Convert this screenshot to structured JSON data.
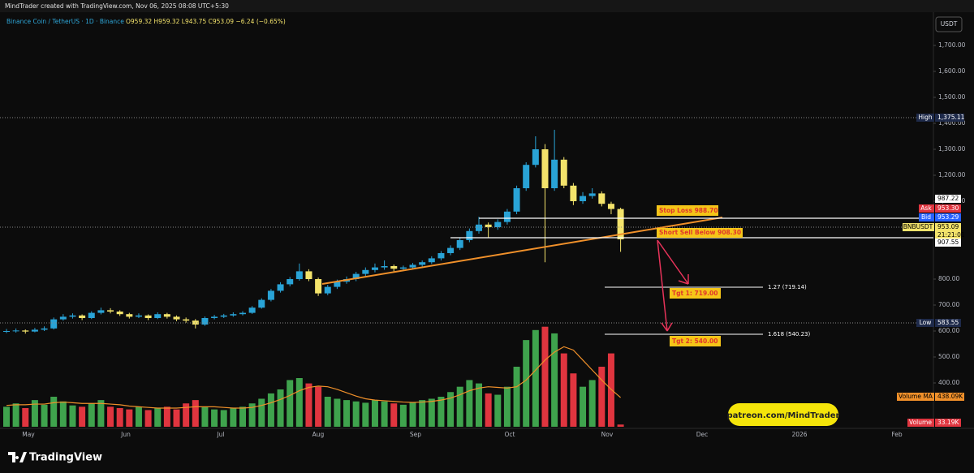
{
  "header": "MindTrader created with TradingView.com, Nov 06, 2025 08:08 UTC+5:30",
  "legend": {
    "symbol": "Binance Coin / TetherUS · 1D · Binance",
    "ohlc": "O959.32 H959.32 L943.75 C953.09 −6.24 (−0.65%)"
  },
  "currency": "USDT",
  "chart_data": {
    "type": "candlestick",
    "up_color": "#29a3d6",
    "down_color": "#f3e36b",
    "volume_up_color": "#3fa34d",
    "volume_down_color": "#e0353f",
    "ma_color": "#f0902a",
    "ylim": [
      300,
      1750
    ],
    "yticks": [
      {
        "value": 400,
        "label": "400.00"
      },
      {
        "value": 500,
        "label": "500.00"
      },
      {
        "value": 600,
        "label": "600.00"
      },
      {
        "value": 700,
        "label": "700.00"
      },
      {
        "value": 800,
        "label": "800.00"
      },
      {
        "value": 1100,
        "label": "1,100.00"
      },
      {
        "value": 1200,
        "label": "1,200.00"
      },
      {
        "value": 1300,
        "label": "1,300.00"
      },
      {
        "value": 1400,
        "label": "1,400.00"
      },
      {
        "value": 1500,
        "label": "1,500.00"
      },
      {
        "value": 1600,
        "label": "1,600.00"
      },
      {
        "value": 1700,
        "label": "1,700.00"
      }
    ],
    "months": [
      "May",
      "Jun",
      "Jul",
      "Aug",
      "Sep",
      "Oct",
      "Nov",
      "Dec",
      "2026",
      "Feb"
    ],
    "candles": [
      [
        598,
        608,
        592,
        600
      ],
      [
        600,
        610,
        594,
        602
      ],
      [
        602,
        606,
        590,
        598
      ],
      [
        598,
        612,
        595,
        605
      ],
      [
        605,
        618,
        600,
        610
      ],
      [
        610,
        652,
        606,
        645
      ],
      [
        645,
        665,
        640,
        655
      ],
      [
        655,
        668,
        648,
        660
      ],
      [
        660,
        664,
        642,
        650
      ],
      [
        650,
        676,
        646,
        670
      ],
      [
        670,
        690,
        664,
        680
      ],
      [
        680,
        688,
        668,
        675
      ],
      [
        675,
        680,
        658,
        665
      ],
      [
        665,
        670,
        648,
        655
      ],
      [
        655,
        668,
        650,
        660
      ],
      [
        660,
        664,
        642,
        650
      ],
      [
        650,
        672,
        646,
        665
      ],
      [
        665,
        670,
        648,
        655
      ],
      [
        655,
        660,
        638,
        645
      ],
      [
        645,
        652,
        632,
        640
      ],
      [
        640,
        646,
        610,
        625
      ],
      [
        625,
        656,
        620,
        650
      ],
      [
        650,
        662,
        645,
        655
      ],
      [
        655,
        666,
        650,
        660
      ],
      [
        660,
        672,
        655,
        665
      ],
      [
        665,
        676,
        660,
        670
      ],
      [
        670,
        696,
        666,
        690
      ],
      [
        690,
        726,
        686,
        720
      ],
      [
        720,
        762,
        714,
        755
      ],
      [
        755,
        788,
        748,
        780
      ],
      [
        780,
        808,
        772,
        800
      ],
      [
        800,
        860,
        794,
        830
      ],
      [
        830,
        838,
        792,
        800
      ],
      [
        800,
        806,
        735,
        745
      ],
      [
        745,
        778,
        738,
        770
      ],
      [
        770,
        798,
        762,
        790
      ],
      [
        790,
        810,
        782,
        800
      ],
      [
        800,
        828,
        792,
        820
      ],
      [
        820,
        845,
        812,
        835
      ],
      [
        835,
        860,
        826,
        845
      ],
      [
        845,
        872,
        836,
        850
      ],
      [
        850,
        856,
        830,
        840
      ],
      [
        840,
        852,
        832,
        845
      ],
      [
        845,
        862,
        838,
        855
      ],
      [
        855,
        872,
        848,
        865
      ],
      [
        865,
        888,
        858,
        880
      ],
      [
        880,
        908,
        872,
        900
      ],
      [
        900,
        930,
        892,
        920
      ],
      [
        920,
        960,
        912,
        950
      ],
      [
        950,
        995,
        942,
        985
      ],
      [
        985,
        1040,
        975,
        1010
      ],
      [
        1010,
        1018,
        960,
        1000
      ],
      [
        1000,
        1030,
        990,
        1020
      ],
      [
        1020,
        1070,
        1010,
        1060
      ],
      [
        1060,
        1160,
        1050,
        1150
      ],
      [
        1150,
        1250,
        1140,
        1240
      ],
      [
        1240,
        1350,
        1230,
        1300
      ],
      [
        1300,
        1320,
        865,
        1150
      ],
      [
        1150,
        1375.11,
        1140,
        1260
      ],
      [
        1260,
        1270,
        1150,
        1160
      ],
      [
        1160,
        1170,
        1085,
        1100
      ],
      [
        1100,
        1135,
        1090,
        1120
      ],
      [
        1120,
        1150,
        1110,
        1130
      ],
      [
        1130,
        1138,
        1080,
        1090
      ],
      [
        1090,
        1098,
        1050,
        1070
      ],
      [
        1070,
        1075,
        905,
        953.09
      ]
    ],
    "volume": [
      300,
      350,
      280,
      400,
      330,
      450,
      380,
      320,
      300,
      350,
      400,
      300,
      280,
      260,
      300,
      250,
      280,
      300,
      260,
      350,
      400,
      300,
      260,
      250,
      280,
      300,
      350,
      420,
      500,
      560,
      700,
      730,
      650,
      600,
      450,
      420,
      400,
      380,
      360,
      400,
      380,
      350,
      330,
      360,
      400,
      420,
      450,
      520,
      600,
      700,
      650,
      500,
      480,
      600,
      900,
      1300,
      1450,
      1500,
      1400,
      1100,
      800,
      600,
      700,
      900,
      1100,
      33.19
    ],
    "volume_ma": [
      320,
      330,
      330,
      340,
      340,
      360,
      370,
      360,
      350,
      350,
      350,
      340,
      330,
      310,
      300,
      290,
      280,
      280,
      280,
      290,
      300,
      300,
      300,
      290,
      280,
      280,
      290,
      320,
      360,
      410,
      470,
      540,
      590,
      610,
      600,
      560,
      510,
      460,
      420,
      400,
      390,
      380,
      370,
      365,
      370,
      380,
      400,
      430,
      480,
      540,
      580,
      600,
      590,
      580,
      600,
      700,
      850,
      1000,
      1120,
      1200,
      1150,
      1000,
      850,
      700,
      560,
      438.09
    ]
  },
  "annotations": {
    "stop_loss": "Stop Loss 988.70",
    "short_sell": "Short Sell Below 908.30",
    "fib1": "1.27 (719.14)",
    "fib2": "1.618 (540.23)",
    "tgt1": "Tgt 1: 719.00",
    "tgt2": "Tgt 2: 540.00",
    "patreon": "patreon.com/MindTrader"
  },
  "price_labels": {
    "high_name": "High",
    "high": "1,375.11",
    "low_name": "Low",
    "low": "583.55",
    "level_top": "987.22",
    "ask_name": "Ask",
    "ask": "953.30",
    "bid_name": "Bid",
    "bid": "953.29",
    "symbol": "BNBUSDT",
    "last": "953.09",
    "countdown": "21:21:01",
    "level_bottom": "907.55",
    "volume_ma_name": "Volume MA",
    "volume_ma": "438.09K",
    "volume_name": "Volume",
    "volume": "33.19K"
  },
  "footer": "TradingView"
}
